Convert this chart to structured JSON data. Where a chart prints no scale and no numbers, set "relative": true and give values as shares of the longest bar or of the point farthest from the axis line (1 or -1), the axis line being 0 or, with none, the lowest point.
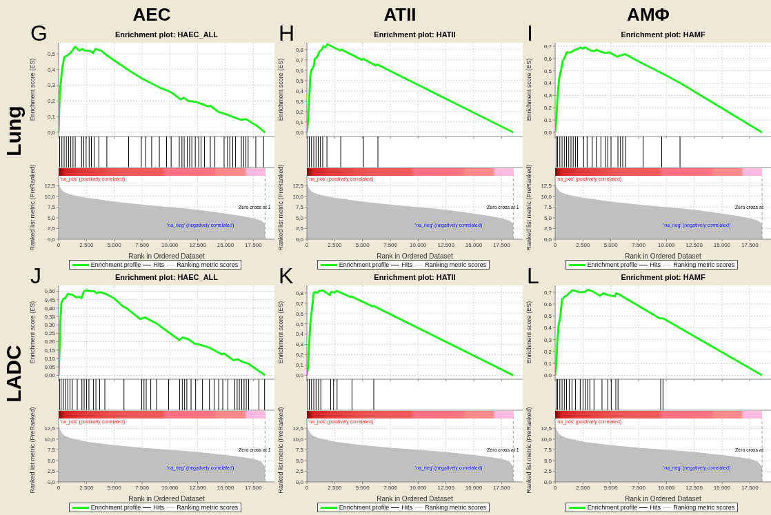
{
  "chart_data": [
    {
      "type": "line",
      "title": "Enrichment plot: HAEC_ALL",
      "ylabel": "Enrichment score (ES)",
      "annotations": [
        "G",
        "AEC",
        "Lung"
      ],
      "tick_labels": "y",
      "grid": true,
      "xlim": [
        0,
        19400
      ],
      "xticks": [
        0,
        2500,
        5000,
        7500,
        10000,
        12500,
        15000,
        17500
      ],
      "ylim": [
        -0.026,
        0.57
      ],
      "yticks": [
        {
          "value": 0,
          "label": "0,0"
        },
        {
          "value": 0.1,
          "label": "0,1"
        },
        {
          "value": 0.2,
          "label": "0,2"
        },
        {
          "value": 0.3,
          "label": "0,3"
        },
        {
          "value": 0.4,
          "label": "0,4"
        },
        {
          "value": 0.5,
          "label": "0,5"
        }
      ],
      "x": [
        0,
        103,
        310,
        517,
        826,
        1136,
        1488,
        1859,
        2107,
        2376,
        2789,
        3099,
        3306,
        3822,
        4339,
        6198,
        7438,
        7851,
        9090,
        9814,
        10227,
        10950,
        11260,
        11673,
        12293,
        12913,
        13429,
        13636,
        14359,
        14875,
        15805,
        16425,
        16838,
        17871,
        18553
      ],
      "series": [
        {
          "name": "Enrichment profile",
          "color": "#22ee22",
          "values": [
            0,
            0.25,
            0.4,
            0.48,
            0.49,
            0.51,
            0.545,
            0.52,
            0.53,
            0.52,
            0.52,
            0.505,
            0.53,
            0.52,
            0.49,
            0.4,
            0.345,
            0.33,
            0.285,
            0.265,
            0.25,
            0.21,
            0.22,
            0.2,
            0.195,
            0.18,
            0.165,
            0.17,
            0.13,
            0.12,
            0.095,
            0.08,
            0.085,
            0.04,
            0
          ]
        }
      ]
    },
    {
      "type": "bar",
      "relative": true,
      "tick_labels": false,
      "xlim": [
        0,
        19400
      ],
      "x": [
        100,
        300,
        500,
        700,
        900,
        1100,
        1300,
        1500,
        2070,
        2270,
        2480,
        2750,
        2950,
        3200,
        3620,
        4340,
        6300,
        7440,
        7850,
        8370,
        9060,
        9710,
        10120,
        10850,
        11090,
        11290,
        11570,
        11780,
        11980,
        12290,
        12600,
        12810,
        13120,
        13640,
        14050,
        14880,
        15190,
        15390,
        15660,
        15910,
        16430,
        16630,
        16840,
        17040,
        17730,
        18430
      ],
      "series": [
        {
          "name": "Hits",
          "color": "#000000",
          "values": [
            1,
            1,
            1,
            1,
            1,
            1,
            1,
            1,
            1,
            1,
            1,
            1,
            1,
            1,
            1,
            1,
            1,
            1,
            1,
            1,
            1,
            1,
            1,
            1,
            1,
            1,
            1,
            1,
            1,
            1,
            1,
            1,
            1,
            1,
            1,
            1,
            1,
            1,
            1,
            1,
            1,
            1,
            1,
            1,
            1,
            1
          ]
        }
      ]
    },
    {
      "type": "area",
      "xlabel": "Rank in Ordered Dataset",
      "ylabel": "Ranked list metric (PreRanked)",
      "annotations": [
        "'na_pos' (positively correlated)",
        "'na_neg' (negatively correlated)",
        "Zero cross at 1"
      ],
      "legend": "bottom",
      "grid": true,
      "xlim": [
        0,
        19400
      ],
      "xticks": [
        0,
        {
          "value": 2500,
          "label": "2.500"
        },
        {
          "value": 5000,
          "label": "5.000"
        },
        {
          "value": 7500,
          "label": "7.500"
        },
        {
          "value": 10000,
          "label": "10.000"
        },
        {
          "value": 12500,
          "label": "12.500"
        },
        {
          "value": 15000,
          "label": "15.000"
        },
        {
          "value": 17500,
          "label": "17.500"
        }
      ],
      "ylim": [
        0,
        14.8
      ],
      "yticks": [
        {
          "value": 0,
          "label": "0,0"
        },
        {
          "value": 2.5,
          "label": "2,5"
        },
        {
          "value": 5,
          "label": "5,0"
        },
        {
          "value": 7.5,
          "label": "7,5"
        },
        {
          "value": 10,
          "label": "10,0"
        },
        {
          "value": 12.5,
          "label": "12,5"
        }
      ],
      "ref_lines": [
        {
          "axis": "x",
          "value": 18550,
          "color": "#999999",
          "line_style": "dashed"
        }
      ],
      "x": [
        0,
        100,
        300,
        600,
        1000,
        1500,
        2500,
        5000,
        7500,
        10000,
        12500,
        15000,
        16500,
        17500,
        18200,
        18550
      ],
      "series": [
        {
          "name": "Ranking metric scores",
          "color": "#c0c0c0",
          "values": [
            13,
            12.2,
            11.3,
            10.8,
            10.4,
            10.1,
            9.6,
            8.7,
            8.0,
            7.4,
            6.8,
            5.9,
            5.3,
            4.8,
            4.3,
            3.5
          ]
        }
      ]
    },
    {
      "type": "line",
      "title": "Enrichment plot: HATII",
      "ylabel": "Enrichment score (ES)",
      "annotations": [
        "H",
        "ATII"
      ],
      "tick_labels": "y",
      "grid": true,
      "xlim": [
        0,
        19400
      ],
      "xticks": [
        0,
        2500,
        5000,
        7500,
        10000,
        12500,
        15000,
        17500
      ],
      "ylim": [
        -0.04,
        0.865
      ],
      "yticks": [
        {
          "value": 0,
          "label": "0,0"
        },
        {
          "value": 0.1,
          "label": "0,1"
        },
        {
          "value": 0.2,
          "label": "0,2"
        },
        {
          "value": 0.3,
          "label": "0,3"
        },
        {
          "value": 0.4,
          "label": "0,4"
        },
        {
          "value": 0.5,
          "label": "0,5"
        },
        {
          "value": 0.6,
          "label": "0,6"
        },
        {
          "value": 0.7,
          "label": "0,7"
        },
        {
          "value": 0.8,
          "label": "0,8"
        }
      ],
      "x": [
        0,
        103,
        207,
        310,
        413,
        620,
        723,
        930,
        1136,
        1343,
        1488,
        1653,
        1859,
        2996,
        3099,
        4958,
        5061,
        6198,
        6343,
        18553
      ],
      "series": [
        {
          "name": "Enrichment profile",
          "color": "#22ee22",
          "values": [
            0,
            0.1,
            0.3,
            0.55,
            0.6,
            0.64,
            0.71,
            0.73,
            0.78,
            0.8,
            0.83,
            0.82,
            0.85,
            0.79,
            0.8,
            0.7,
            0.71,
            0.645,
            0.655,
            0
          ]
        }
      ]
    },
    {
      "type": "bar",
      "relative": true,
      "tick_labels": false,
      "xlim": [
        0,
        19400
      ],
      "x": [
        60,
        200,
        400,
        600,
        800,
        1000,
        1200,
        1400,
        1780,
        3020,
        5060,
        6360
      ],
      "series": [
        {
          "name": "Hits",
          "color": "#000000",
          "values": [
            1,
            1,
            1,
            1,
            1,
            1,
            1,
            1,
            1,
            1,
            1,
            1
          ]
        }
      ]
    },
    {
      "type": "area",
      "xlabel": "Rank in Ordered Dataset",
      "ylabel": "Ranked list metric (PreRanked)",
      "annotations": [
        "'na_pos' (positively correlated)",
        "'na_neg' (negatively correlated)",
        "Zero cross at 1"
      ],
      "legend": "bottom",
      "grid": true,
      "xlim": [
        0,
        19400
      ],
      "xticks": [
        0,
        {
          "value": 2500,
          "label": "2.500"
        },
        {
          "value": 5000,
          "label": "5.000"
        },
        {
          "value": 7500,
          "label": "7.500"
        },
        {
          "value": 10000,
          "label": "10.000"
        },
        {
          "value": 12500,
          "label": "12.500"
        },
        {
          "value": 15000,
          "label": "15.000"
        },
        {
          "value": 17500,
          "label": "17.500"
        }
      ],
      "ylim": [
        0,
        14.8
      ],
      "yticks": [
        {
          "value": 0,
          "label": "0,0"
        },
        {
          "value": 2.5,
          "label": "2,5"
        },
        {
          "value": 5,
          "label": "5,0"
        },
        {
          "value": 7.5,
          "label": "7,5"
        },
        {
          "value": 10,
          "label": "10,0"
        },
        {
          "value": 12.5,
          "label": "12,5"
        }
      ],
      "ref_lines": [
        {
          "axis": "x",
          "value": 18550,
          "color": "#999999",
          "line_style": "dashed"
        }
      ],
      "x": [
        0,
        100,
        300,
        600,
        1000,
        1500,
        2500,
        5000,
        7500,
        10000,
        12500,
        15000,
        16500,
        17500,
        18200,
        18550
      ],
      "series": [
        {
          "name": "Ranking metric scores",
          "color": "#c0c0c0",
          "values": [
            13,
            12.2,
            11.3,
            10.8,
            10.4,
            10.1,
            9.6,
            8.7,
            8.0,
            7.4,
            6.8,
            5.9,
            5.3,
            4.8,
            4.3,
            3.5
          ]
        }
      ]
    },
    {
      "type": "line",
      "title": "Enrichment plot: HAMF",
      "ylabel": "Enrichment score (ES)",
      "annotations": [
        "I",
        "AMΦ"
      ],
      "tick_labels": "y",
      "grid": true,
      "xlim": [
        0,
        19400
      ],
      "xticks": [
        0,
        2500,
        5000,
        7500,
        10000,
        12500,
        15000,
        17500
      ],
      "ylim": [
        -0.034,
        0.728
      ],
      "yticks": [
        {
          "value": 0,
          "label": "0,0"
        },
        {
          "value": 0.1,
          "label": "0,1"
        },
        {
          "value": 0.2,
          "label": "0,2"
        },
        {
          "value": 0.3,
          "label": "0,3"
        },
        {
          "value": 0.4,
          "label": "0,4"
        },
        {
          "value": 0.5,
          "label": "0,5"
        },
        {
          "value": 0.6,
          "label": "0,6"
        },
        {
          "value": 0.7,
          "label": "0,7"
        }
      ],
      "x": [
        0,
        103,
        207,
        351,
        517,
        682,
        826,
        1033,
        1446,
        1653,
        2107,
        2273,
        2520,
        2686,
        3202,
        3512,
        3719,
        4442,
        4855,
        5578,
        5888,
        6301,
        7851,
        9607,
        11260,
        18594
      ],
      "series": [
        {
          "name": "Enrichment profile",
          "color": "#22ee22",
          "values": [
            0,
            0.1,
            0.27,
            0.43,
            0.5,
            0.58,
            0.6,
            0.65,
            0.65,
            0.665,
            0.68,
            0.69,
            0.68,
            0.69,
            0.665,
            0.66,
            0.67,
            0.645,
            0.65,
            0.615,
            0.625,
            0.635,
            0.56,
            0.48,
            0.4,
            0
          ]
        }
      ]
    },
    {
      "type": "bar",
      "relative": true,
      "tick_labels": false,
      "xlim": [
        0,
        19400
      ],
      "x": [
        60,
        200,
        400,
        600,
        800,
        1000,
        1200,
        1400,
        1600,
        1800,
        2000,
        2540,
        2850,
        3310,
        3680,
        4090,
        4500,
        4710,
        5000,
        5620,
        5850,
        6050,
        6300,
        7890,
        9550,
        11200
      ],
      "series": [
        {
          "name": "Hits",
          "color": "#000000",
          "values": [
            1,
            1,
            1,
            1,
            1,
            1,
            1,
            1,
            1,
            1,
            1,
            1,
            1,
            1,
            1,
            1,
            1,
            1,
            1,
            1,
            1,
            1,
            1,
            1,
            1,
            1
          ]
        }
      ]
    },
    {
      "type": "area",
      "xlabel": "Rank in Ordered Dataset",
      "ylabel": "Ranked list metric (PreRanked)",
      "annotations": [
        "'na_pos' (positively correlated)",
        "'na_neg' (negatively correlated)",
        "Zero cross at"
      ],
      "legend": "bottom",
      "grid": true,
      "xlim": [
        0,
        19400
      ],
      "xticks": [
        0,
        {
          "value": 2500,
          "label": "2.500"
        },
        {
          "value": 5000,
          "label": "5.000"
        },
        {
          "value": 7500,
          "label": "7.500"
        },
        {
          "value": 10000,
          "label": "10.000"
        },
        {
          "value": 12500,
          "label": "12.500"
        },
        {
          "value": 15000,
          "label": "15.000"
        },
        {
          "value": 17500,
          "label": "17.500"
        }
      ],
      "ylim": [
        0,
        14.8
      ],
      "yticks": [
        {
          "value": 0,
          "label": "0,0"
        },
        {
          "value": 2.5,
          "label": "2,5"
        },
        {
          "value": 5,
          "label": "5,0"
        },
        {
          "value": 7.5,
          "label": "7,5"
        },
        {
          "value": 10,
          "label": "10,0"
        },
        {
          "value": 12.5,
          "label": "12,5"
        }
      ],
      "ref_lines": [
        {
          "axis": "x",
          "value": 18600,
          "color": "#999999",
          "line_style": "dashed"
        }
      ],
      "x": [
        0,
        100,
        300,
        600,
        1000,
        1500,
        2500,
        5000,
        7500,
        10000,
        12500,
        15000,
        16500,
        17500,
        18200,
        18600
      ],
      "series": [
        {
          "name": "Ranking metric scores",
          "color": "#c0c0c0",
          "values": [
            13,
            12.2,
            11.3,
            10.8,
            10.4,
            10.1,
            9.6,
            8.7,
            8.0,
            7.4,
            6.8,
            5.9,
            5.3,
            4.8,
            4.3,
            3.5
          ]
        }
      ]
    },
    {
      "type": "line",
      "title": "Enrichment plot: HAEC_ALL",
      "ylabel": "Enrichment score (ES)",
      "annotations": [
        "J",
        "LADC"
      ],
      "tick_labels": "y",
      "grid": true,
      "xlim": [
        0,
        19400
      ],
      "xticks": [
        0,
        2500,
        5000,
        7500,
        10000,
        12500,
        15000,
        17500
      ],
      "ylim": [
        -0.023,
        0.535
      ],
      "yticks": [
        {
          "value": 0,
          "label": "0,00"
        },
        {
          "value": 0.05,
          "label": "0,05"
        },
        {
          "value": 0.1,
          "label": "0,10"
        },
        {
          "value": 0.15,
          "label": "0,15"
        },
        {
          "value": 0.2,
          "label": "0,20"
        },
        {
          "value": 0.25,
          "label": "0,25"
        },
        {
          "value": 0.3,
          "label": "0,30"
        },
        {
          "value": 0.35,
          "label": "0,35"
        },
        {
          "value": 0.4,
          "label": "0,40"
        },
        {
          "value": 0.45,
          "label": "0,45"
        },
        {
          "value": 0.5,
          "label": "0,50"
        }
      ],
      "x": [
        0,
        62,
        145,
        248,
        413,
        620,
        826,
        1240,
        1550,
        1963,
        2066,
        2273,
        2479,
        2892,
        3202,
        3409,
        3719,
        4235,
        4958,
        5785,
        6095,
        7334,
        7748,
        8781,
        9814,
        10847,
        11157,
        11673,
        12190,
        12809,
        13532,
        14669,
        14875,
        15702,
        16115,
        16528,
        17045,
        18553
      ],
      "series": [
        {
          "name": "Enrichment profile",
          "color": "#22ee22",
          "values": [
            0,
            0.1,
            0.3,
            0.43,
            0.455,
            0.46,
            0.485,
            0.48,
            0.465,
            0.465,
            0.46,
            0.5,
            0.505,
            0.5,
            0.5,
            0.49,
            0.495,
            0.485,
            0.46,
            0.41,
            0.4,
            0.335,
            0.345,
            0.31,
            0.26,
            0.21,
            0.225,
            0.215,
            0.19,
            0.18,
            0.165,
            0.125,
            0.13,
            0.09,
            0.095,
            0.08,
            0.07,
            0
          ]
        }
      ]
    },
    {
      "type": "bar",
      "relative": true,
      "tick_labels": false,
      "xlim": [
        0,
        19400
      ],
      "x": [
        60,
        200,
        400,
        600,
        800,
        1000,
        1200,
        1650,
        2070,
        2270,
        2480,
        2700,
        3100,
        3330,
        3660,
        4130,
        5850,
        7440,
        7650,
        7850,
        8260,
        8780,
        9860,
        10850,
        11090,
        11300,
        11500,
        11880,
        12290,
        12910,
        13530,
        13950,
        14360,
        14730,
        15190,
        15810,
        16020,
        16220,
        16430,
        16640,
        16840,
        17050,
        17980,
        18490
      ],
      "series": [
        {
          "name": "Hits",
          "color": "#000000",
          "values": [
            1,
            1,
            1,
            1,
            1,
            1,
            1,
            1,
            1,
            1,
            1,
            1,
            1,
            1,
            1,
            1,
            1,
            1,
            1,
            1,
            1,
            1,
            1,
            1,
            1,
            1,
            1,
            1,
            1,
            1,
            1,
            1,
            1,
            1,
            1,
            1,
            1,
            1,
            1,
            1,
            1,
            1,
            1,
            1
          ]
        }
      ]
    },
    {
      "type": "area",
      "xlabel": "Rank in Ordered Dataset",
      "ylabel": "Ranked list metric (PreRanked)",
      "annotations": [
        "'na_pos' (positively correlated)",
        "'na_neg' (negatively correlated)",
        "Zero cross at 1"
      ],
      "legend": "bottom",
      "grid": true,
      "xlim": [
        0,
        19400
      ],
      "xticks": [
        0,
        {
          "value": 2500,
          "label": "2.500"
        },
        {
          "value": 5000,
          "label": "5.000"
        },
        {
          "value": 7500,
          "label": "7.500"
        },
        {
          "value": 10000,
          "label": "10.000"
        },
        {
          "value": 12500,
          "label": "12.500"
        },
        {
          "value": 15000,
          "label": "15.000"
        },
        {
          "value": 17500,
          "label": "17.500"
        }
      ],
      "ylim": [
        0,
        14.8
      ],
      "yticks": [
        {
          "value": 0,
          "label": "0,0"
        },
        {
          "value": 2.5,
          "label": "2,5"
        },
        {
          "value": 5,
          "label": "5,0"
        },
        {
          "value": 7.5,
          "label": "7,5"
        },
        {
          "value": 10,
          "label": "10,0"
        },
        {
          "value": 12.5,
          "label": "12,5"
        }
      ],
      "ref_lines": [
        {
          "axis": "x",
          "value": 18550,
          "color": "#999999",
          "line_style": "dashed"
        }
      ],
      "x": [
        0,
        100,
        300,
        600,
        1000,
        1500,
        2500,
        5000,
        7500,
        10000,
        12500,
        15000,
        16500,
        17500,
        18200,
        18550
      ],
      "series": [
        {
          "name": "Ranking metric scores",
          "color": "#c0c0c0",
          "values": [
            13,
            12.2,
            11.2,
            10.6,
            10.2,
            9.9,
            9.3,
            8.5,
            7.9,
            7.4,
            6.9,
            6.2,
            5.7,
            5.3,
            4.7,
            3.3
          ]
        }
      ]
    },
    {
      "type": "line",
      "title": "Enrichment plot: HATII",
      "ylabel": "Enrichment score (ES)",
      "annotations": [
        "K"
      ],
      "tick_labels": "y",
      "grid": true,
      "xlim": [
        0,
        19400
      ],
      "xticks": [
        0,
        2500,
        5000,
        7500,
        10000,
        12500,
        15000,
        17500
      ],
      "ylim": [
        -0.038,
        0.873
      ],
      "yticks": [
        {
          "value": 0,
          "label": "0,0"
        },
        {
          "value": 0.1,
          "label": "0,1"
        },
        {
          "value": 0.2,
          "label": "0,2"
        },
        {
          "value": 0.3,
          "label": "0,3"
        },
        {
          "value": 0.4,
          "label": "0,4"
        },
        {
          "value": 0.5,
          "label": "0,5"
        },
        {
          "value": 0.6,
          "label": "0,6"
        },
        {
          "value": 0.7,
          "label": "0,7"
        },
        {
          "value": 0.8,
          "label": "0,8"
        }
      ],
      "x": [
        0,
        103,
        207,
        310,
        413,
        517,
        620,
        826,
        930,
        1136,
        1446,
        2066,
        2169,
        2479,
        2686,
        3925,
        4029,
        5888,
        5991,
        18553
      ],
      "series": [
        {
          "name": "Enrichment profile",
          "color": "#22ee22",
          "values": [
            0,
            0.07,
            0.3,
            0.5,
            0.6,
            0.7,
            0.8,
            0.81,
            0.8,
            0.82,
            0.825,
            0.78,
            0.81,
            0.805,
            0.82,
            0.76,
            0.765,
            0.67,
            0.675,
            0
          ]
        }
      ]
    },
    {
      "type": "bar",
      "relative": true,
      "tick_labels": false,
      "xlim": [
        0,
        19400
      ],
      "x": [
        60,
        200,
        400,
        600,
        800,
        1030,
        1230,
        2110,
        2380,
        2690,
        4030,
        5990
      ],
      "series": [
        {
          "name": "Hits",
          "color": "#000000",
          "values": [
            1,
            1,
            1,
            1,
            1,
            1,
            1,
            1,
            1,
            1,
            1,
            1
          ]
        }
      ]
    },
    {
      "type": "area",
      "xlabel": "Rank in Ordered Dataset",
      "ylabel": "Ranked list metric (PreRanked)",
      "annotations": [
        "'na_pos' (positively correlated)",
        "'na_neg' (negatively correlated)",
        "Zero cross at 1"
      ],
      "legend": "bottom",
      "grid": true,
      "xlim": [
        0,
        19400
      ],
      "xticks": [
        0,
        {
          "value": 2500,
          "label": "2.500"
        },
        {
          "value": 5000,
          "label": "5.000"
        },
        {
          "value": 7500,
          "label": "7.500"
        },
        {
          "value": 10000,
          "label": "10.000"
        },
        {
          "value": 12500,
          "label": "12.500"
        },
        {
          "value": 15000,
          "label": "15.000"
        },
        {
          "value": 17500,
          "label": "17.500"
        }
      ],
      "ylim": [
        0,
        14.8
      ],
      "yticks": [
        {
          "value": 0,
          "label": "0,0"
        },
        {
          "value": 2.5,
          "label": "2,5"
        },
        {
          "value": 5,
          "label": "5,0"
        },
        {
          "value": 7.5,
          "label": "7,5"
        },
        {
          "value": 10,
          "label": "10,0"
        },
        {
          "value": 12.5,
          "label": "12,5"
        }
      ],
      "ref_lines": [
        {
          "axis": "x",
          "value": 18550,
          "color": "#999999",
          "line_style": "dashed"
        }
      ],
      "x": [
        0,
        100,
        300,
        600,
        1000,
        1500,
        2500,
        5000,
        7500,
        10000,
        12500,
        15000,
        16500,
        17500,
        18200,
        18550
      ],
      "series": [
        {
          "name": "Ranking metric scores",
          "color": "#c0c0c0",
          "values": [
            13,
            12.2,
            11.2,
            10.6,
            10.2,
            9.9,
            9.3,
            8.5,
            7.9,
            7.4,
            6.9,
            6.2,
            5.7,
            5.3,
            4.7,
            3.3
          ]
        }
      ]
    },
    {
      "type": "line",
      "title": "Enrichment plot: HAMF",
      "ylabel": "Enrichment score (ES)",
      "annotations": [
        "L"
      ],
      "tick_labels": "y",
      "grid": true,
      "xlim": [
        0,
        19400
      ],
      "xticks": [
        0,
        2500,
        5000,
        7500,
        10000,
        12500,
        15000,
        17500
      ],
      "ylim": [
        -0.033,
        0.757
      ],
      "yticks": [
        {
          "value": 0,
          "label": "0,0"
        },
        {
          "value": 0.1,
          "label": "0,1"
        },
        {
          "value": 0.2,
          "label": "0,2"
        },
        {
          "value": 0.3,
          "label": "0,3"
        },
        {
          "value": 0.4,
          "label": "0,4"
        },
        {
          "value": 0.5,
          "label": "0,5"
        },
        {
          "value": 0.6,
          "label": "0,6"
        },
        {
          "value": 0.7,
          "label": "0,7"
        }
      ],
      "x": [
        0,
        103,
        207,
        310,
        475,
        620,
        826,
        1033,
        1240,
        1550,
        1859,
        2169,
        2582,
        2996,
        3409,
        4029,
        4339,
        4649,
        5061,
        5372,
        5475,
        5682,
        9400,
        9710,
        18594
      ],
      "series": [
        {
          "name": "Enrichment profile",
          "color": "#22ee22",
          "values": [
            0,
            0.1,
            0.3,
            0.42,
            0.5,
            0.64,
            0.66,
            0.67,
            0.69,
            0.715,
            0.71,
            0.7,
            0.7,
            0.72,
            0.705,
            0.67,
            0.69,
            0.68,
            0.67,
            0.665,
            0.69,
            0.685,
            0.48,
            0.48,
            0
          ]
        }
      ]
    },
    {
      "type": "bar",
      "relative": true,
      "tick_labels": false,
      "xlim": [
        0,
        19400
      ],
      "x": [
        60,
        200,
        400,
        600,
        800,
        1000,
        1240,
        1490,
        1800,
        2230,
        2480,
        2700,
        2900,
        3100,
        3470,
        4190,
        4710,
        5020,
        5430,
        5630,
        9460,
        9670
      ],
      "series": [
        {
          "name": "Hits",
          "color": "#000000",
          "values": [
            1,
            1,
            1,
            1,
            1,
            1,
            1,
            1,
            1,
            1,
            1,
            1,
            1,
            1,
            1,
            1,
            1,
            1,
            1,
            1,
            1,
            1
          ]
        }
      ]
    },
    {
      "type": "area",
      "xlabel": "Rank in Ordered Dataset",
      "ylabel": "Ranked list metric (PreRanked)",
      "annotations": [
        "'na_pos' (positively correlated)",
        "'na_neg' (negatively correlated)",
        "Zero cross at"
      ],
      "legend": "bottom",
      "grid": true,
      "xlim": [
        0,
        19400
      ],
      "xticks": [
        0,
        {
          "value": 2500,
          "label": "2.500"
        },
        {
          "value": 5000,
          "label": "5.000"
        },
        {
          "value": 7500,
          "label": "7.500"
        },
        {
          "value": 10000,
          "label": "10.000"
        },
        {
          "value": 12500,
          "label": "12.500"
        },
        {
          "value": 15000,
          "label": "15.000"
        },
        {
          "value": 17500,
          "label": "17.500"
        }
      ],
      "ylim": [
        0,
        14.8
      ],
      "yticks": [
        {
          "value": 0,
          "label": "0,0"
        },
        {
          "value": 2.5,
          "label": "2,5"
        },
        {
          "value": 5,
          "label": "5,0"
        },
        {
          "value": 7.5,
          "label": "7,5"
        },
        {
          "value": 10,
          "label": "10,0"
        },
        {
          "value": 12.5,
          "label": "12,5"
        }
      ],
      "ref_lines": [
        {
          "axis": "x",
          "value": 18600,
          "color": "#999999",
          "line_style": "dashed"
        }
      ],
      "x": [
        0,
        100,
        300,
        600,
        1000,
        1500,
        2500,
        5000,
        7500,
        10000,
        12500,
        15000,
        16500,
        17500,
        18200,
        18600
      ],
      "series": [
        {
          "name": "Ranking metric scores",
          "color": "#c0c0c0",
          "values": [
            13,
            12.2,
            11.2,
            10.6,
            10.2,
            9.9,
            9.3,
            8.5,
            7.9,
            7.4,
            6.9,
            6.2,
            5.7,
            5.3,
            4.7,
            3.3
          ]
        }
      ]
    }
  ]
}
